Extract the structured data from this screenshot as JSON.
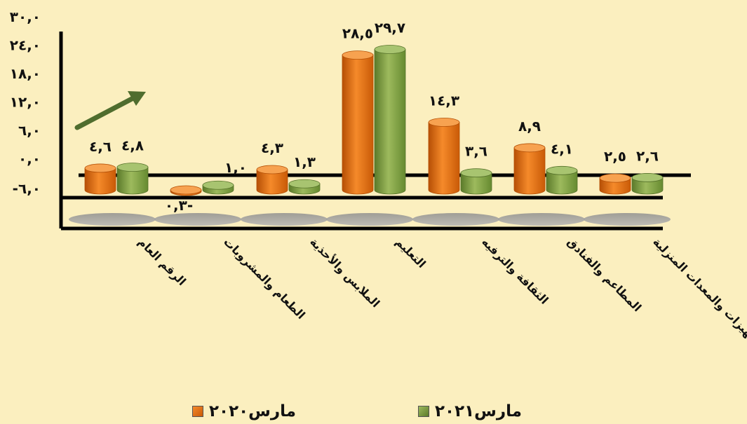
{
  "chart_data": {
    "type": "bar",
    "categories": [
      "الرقم العام",
      "الطعام والمشروبات",
      "الملابس والأحذية",
      "التعليم",
      "الثقافة والترفيه",
      "المطاعم والفنادق",
      "الأثاث والتجهيزات والمعدات المنزلية"
    ],
    "series": [
      {
        "name": "مارس٢٠٢٠",
        "values": [
          4.6,
          -0.3,
          4.3,
          28.5,
          14.3,
          8.9,
          2.5
        ],
        "labels": [
          "٤,٦",
          "٠,٣-",
          "٤,٣",
          "٢٨,٥",
          "١٤,٣",
          "٨,٩",
          "٢,٥"
        ],
        "color": "#e36c0a"
      },
      {
        "name": "مارس٢٠٢١",
        "values": [
          4.8,
          1.0,
          1.3,
          29.7,
          3.6,
          4.1,
          2.6
        ],
        "labels": [
          "٤,٨",
          "١,٠",
          "١,٣",
          "٢٩,٧",
          "٣,٦",
          "٤,١",
          "٢,٦"
        ],
        "color": "#77933c"
      }
    ],
    "y_ticks": [
      "٣٠,٠",
      "٢٤,٠",
      "١٨,٠",
      "١٢,٠",
      "٦,٠",
      "٠,٠",
      "-٦,٠"
    ],
    "ylim": [
      -6,
      30
    ],
    "grid": false,
    "legend_position": "bottom"
  },
  "legend": {
    "series_2020": "مارس٢٠٢٠",
    "series_2021": "مارس٢٠٢١"
  }
}
